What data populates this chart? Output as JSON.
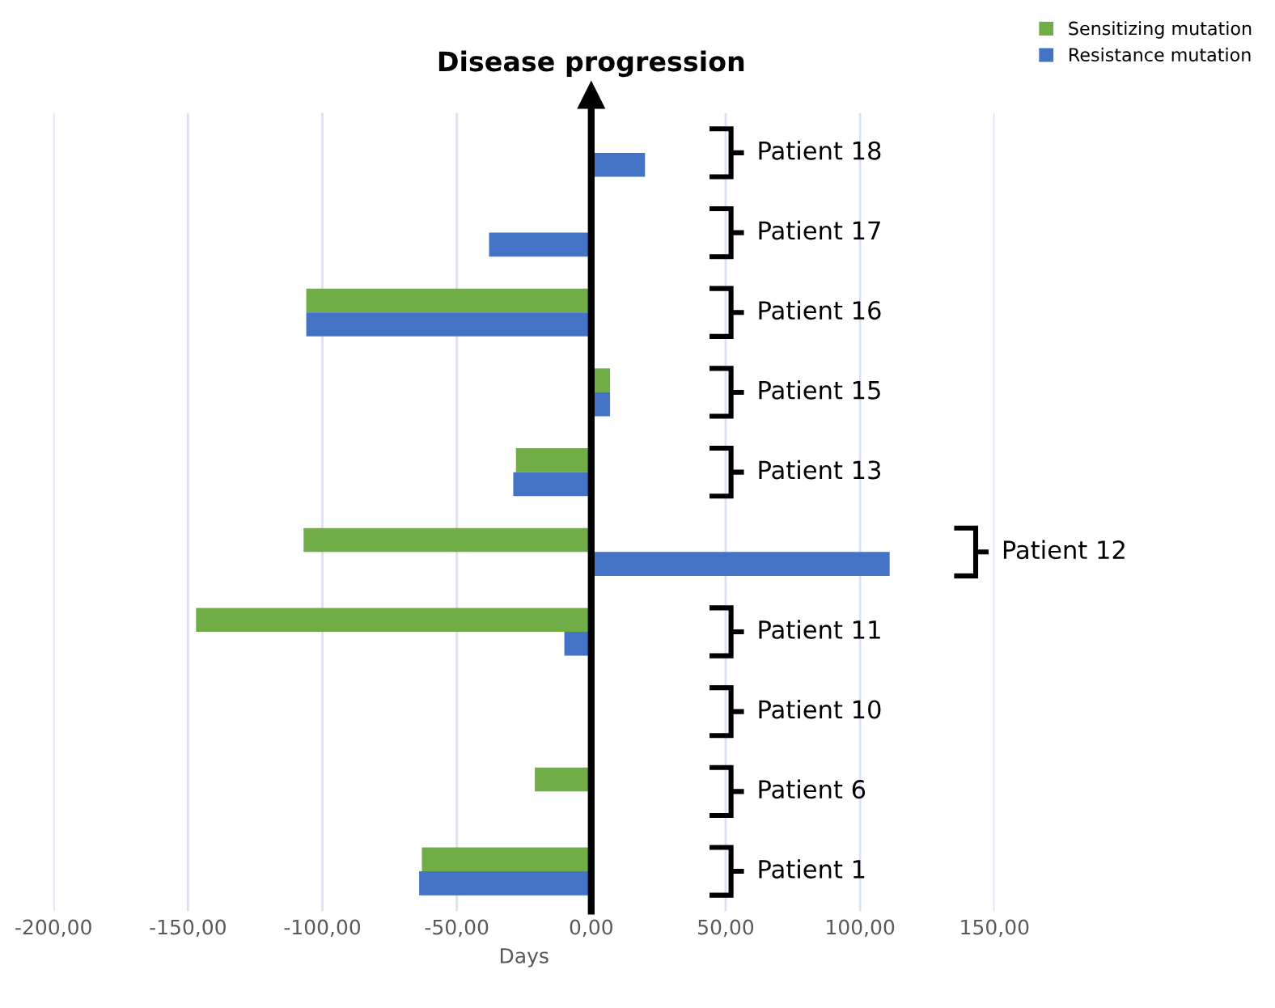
{
  "chart_data": {
    "type": "bar",
    "orientation": "horizontal",
    "xlabel": "Days",
    "categories": [
      "Patient 18",
      "Patient 17",
      "Patient 16",
      "Patient 15",
      "Patient 13",
      "Patient 12",
      "Patient 11",
      "Patient 10",
      "Patient 6",
      "Patient 1"
    ],
    "series": [
      {
        "name": "Sensitizing mutation",
        "color": "#70ad47",
        "values": [
          null,
          null,
          -106,
          7,
          -28,
          -107,
          -147,
          null,
          -21,
          -63
        ]
      },
      {
        "name": "Resistance mutation",
        "color": "#4472c4",
        "values": [
          20,
          -38,
          -106,
          7,
          -29,
          111,
          -10,
          null,
          null,
          -64
        ]
      }
    ],
    "xlim": [
      -200,
      150
    ],
    "xticks": [
      {
        "value": -200,
        "label": "-200,00"
      },
      {
        "value": -150,
        "label": "-150,00"
      },
      {
        "value": -100,
        "label": "-100,00"
      },
      {
        "value": -50,
        "label": "-50,00"
      },
      {
        "value": 0,
        "label": "0,00"
      },
      {
        "value": 50,
        "label": "50,00"
      },
      {
        "value": 100,
        "label": "100,00"
      },
      {
        "value": 150,
        "label": "150,00"
      }
    ],
    "ref_lines": [
      {
        "axis": "x",
        "value": 0,
        "label": "Disease progression",
        "color": "#000000"
      }
    ],
    "grid": "x",
    "legend": "top right"
  }
}
